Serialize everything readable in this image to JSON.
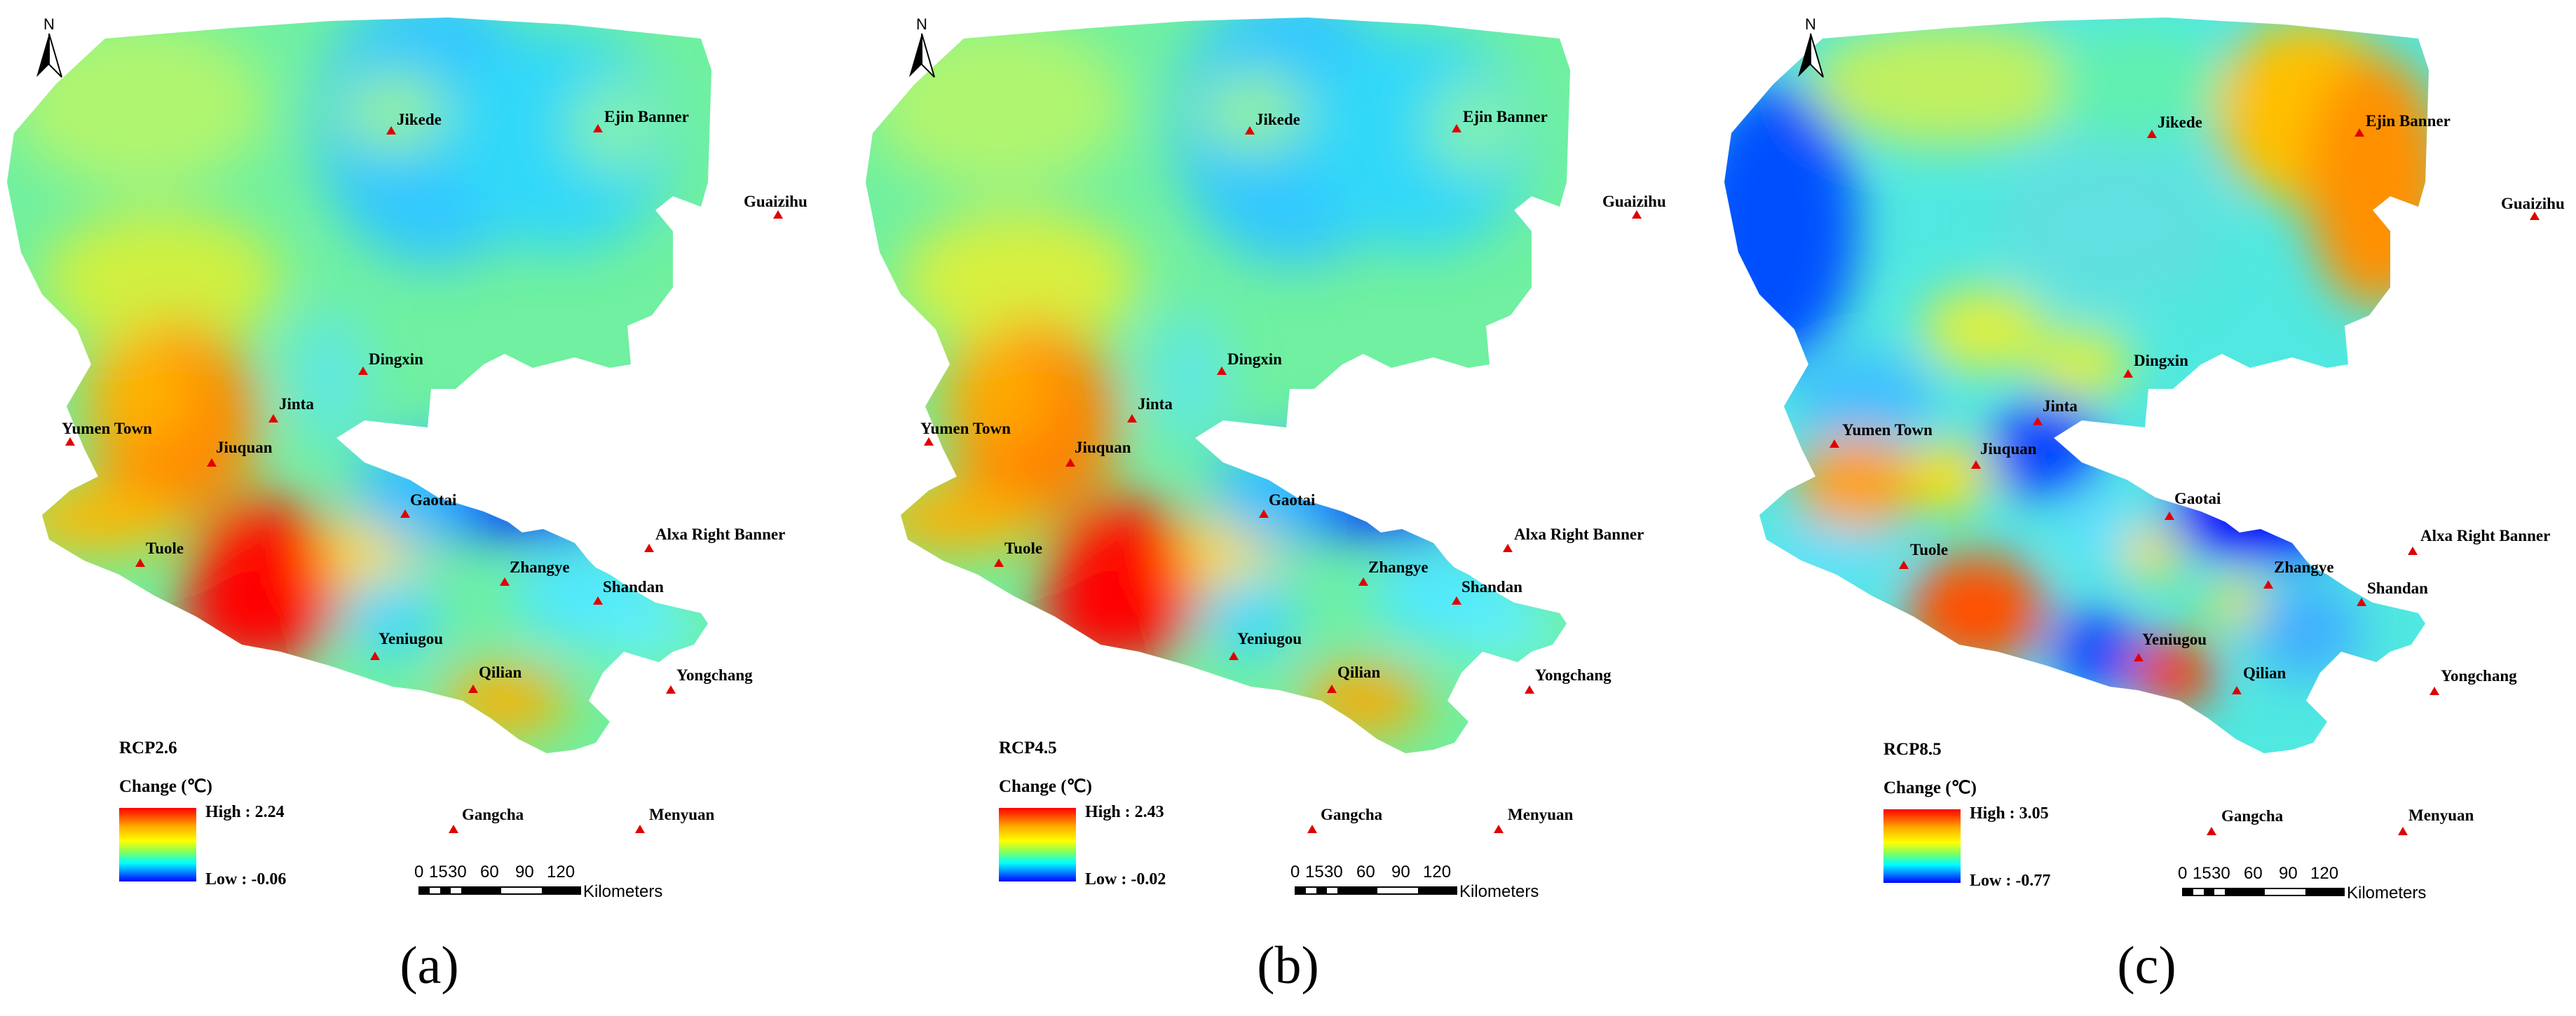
{
  "colors": {
    "high": "#ff0000",
    "mid_high": "#ffff00",
    "mid": "#00ffff",
    "low": "#0000ff",
    "marker": "#e00000"
  },
  "north_label": "N",
  "scale_bar": {
    "ticks": [
      "0",
      "15",
      "30",
      "60",
      "90",
      "120"
    ],
    "unit": "Kilometers"
  },
  "legend_change_label": "Change (℃)",
  "towns": [
    "Jikede",
    "Ejin Banner",
    "Guaizihu",
    "Dingxin",
    "Jinta",
    "Yumen Town",
    "Jiuquan",
    "Gaotai",
    "Alxa Right Banner",
    "Tuole",
    "Zhangye",
    "Shandan",
    "Yeniugou",
    "Qilian",
    "Yongchang",
    "Gangcha",
    "Menyuan"
  ],
  "panels": [
    {
      "scenario": "RCP2.6",
      "caption": "(a)",
      "high": "High : 2.24",
      "low": "Low : -0.06"
    },
    {
      "scenario": "RCP4.5",
      "caption": "(b)",
      "high": "High : 2.43",
      "low": "Low : -0.02"
    },
    {
      "scenario": "RCP8.5",
      "caption": "(c)",
      "high": "High : 3.05",
      "low": "Low : -0.77"
    }
  ]
}
